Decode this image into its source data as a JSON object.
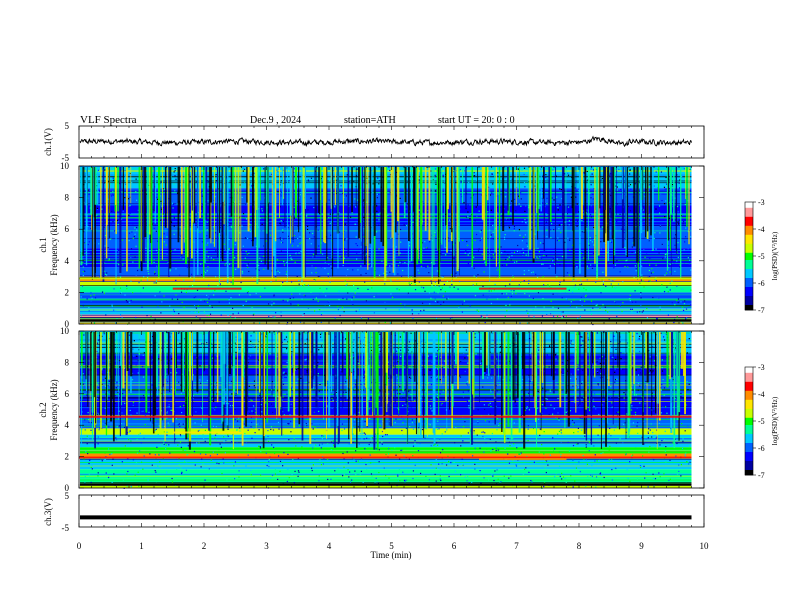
{
  "header": {
    "title": "VLF  Spectra",
    "date": "Dec.9  , 2024",
    "station": "station=ATH",
    "start_ut": "start  UT  =    20: 0   : 0"
  },
  "chart_data": [
    {
      "id": "ch1-waveform",
      "type": "line",
      "ylabel": "ch.1(V)",
      "ylim": [
        -5,
        5
      ],
      "yticks": [
        "5",
        "-5"
      ],
      "series_color": "#000000",
      "x_range": [
        0,
        10
      ],
      "data_end": 9.8,
      "amplitude": 0.6
    },
    {
      "id": "ch1-spectrogram",
      "type": "heatmap",
      "ylabel": "ch.1\nFrequency  (kHz)",
      "ylim": [
        0,
        10
      ],
      "yticks": [
        "0",
        "2",
        "4",
        "6",
        "8",
        "10"
      ],
      "x_range": [
        0,
        10
      ],
      "data_end": 9.8,
      "colorbar": {
        "label": "log(PSD)(V²/Hz)",
        "range": [
          -7,
          -3
        ],
        "ticks": [
          "-3",
          "-4",
          "-5",
          "-6",
          "-7"
        ]
      }
    },
    {
      "id": "ch2-spectrogram",
      "type": "heatmap",
      "ylabel": "ch.2\nFrequency  (kHz)",
      "ylim": [
        0,
        10
      ],
      "yticks": [
        "0",
        "2",
        "4",
        "6",
        "8",
        "10"
      ],
      "x_range": [
        0,
        10
      ],
      "data_end": 9.8,
      "colorbar": {
        "label": "log(PSD)(V²/Hz)",
        "range": [
          -7,
          -3
        ],
        "ticks": [
          "-3",
          "-4",
          "-5",
          "-6",
          "-7"
        ]
      }
    },
    {
      "id": "ch3-waveform",
      "type": "line",
      "ylabel": "ch.3(V)",
      "ylim": [
        -5,
        5
      ],
      "yticks": [
        "5",
        "-5"
      ],
      "series_color": "#000000",
      "x_range": [
        0,
        10
      ],
      "data_end": 9.8,
      "level": -2
    }
  ],
  "xaxis": {
    "label": "Time  (min)",
    "range": [
      0,
      10
    ],
    "ticks": [
      "0",
      "1",
      "2",
      "3",
      "4",
      "5",
      "6",
      "7",
      "8",
      "9",
      "10"
    ]
  },
  "colormap": [
    "#000000",
    "#0000a0",
    "#0000ff",
    "#0060ff",
    "#00c8ff",
    "#00ff96",
    "#00ff00",
    "#c8ff00",
    "#ffe600",
    "#ff8c00",
    "#ff0000",
    "#ff9a9a",
    "#ffffff"
  ]
}
